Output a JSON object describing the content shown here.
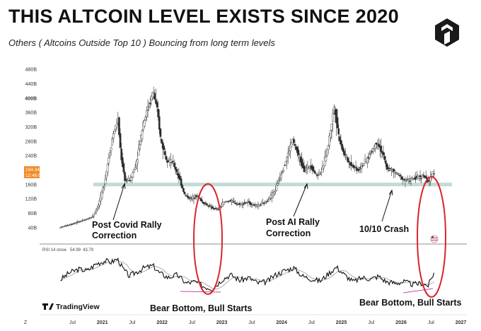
{
  "title": "THIS ALTCOIN LEVEL EXISTS SINCE 2020",
  "subtitle": "Others ( Altcoins Outside Top 10 ) Bouncing from long term levels",
  "colors": {
    "candle_up": "#ffffff",
    "candle_down": "#2b2b2b",
    "support_band": "#b9d3cc",
    "ellipse": "#d8262c",
    "price_tag": "#f28c28",
    "rsi_line": "#111111",
    "rsi_ma": "#9a9a9a"
  },
  "logo": {
    "icon": "cube-logo-icon"
  },
  "annotations": {
    "post_covid": [
      "Post Covid Rally",
      "Correction"
    ],
    "post_ai": [
      "Post AI Rally",
      "Correction"
    ],
    "crash": "10/10 Crash",
    "bear_bottom_1": "Bear Bottom, Bull Starts",
    "bear_bottom_2": "Bear Bottom, Bull Starts"
  },
  "price_tag": {
    "value": "194.34B",
    "time": "12:46:06"
  },
  "rsi": {
    "label": "RSI 14 close",
    "value1": "54.99",
    "value2": "43.79"
  },
  "tradingview": "TradingView",
  "chart_data": [
    {
      "type": "line",
      "name": "price",
      "ytick_labels": [
        "480B",
        "440B",
        "400B",
        "360B",
        "320B",
        "280B",
        "240B",
        "200B",
        "160B",
        "120B",
        "80B",
        "40B"
      ],
      "xtick_labels": [
        "Z",
        "Jul",
        "2021",
        "Jul",
        "2022",
        "Jul",
        "2023",
        "Jul",
        "2024",
        "Jul",
        "2025",
        "Jul",
        "2026",
        "Jul",
        "2027"
      ],
      "ylim": [
        20,
        500
      ],
      "support_band": [
        155,
        165
      ],
      "points": [
        [
          2020.3,
          40
        ],
        [
          2020.5,
          50
        ],
        [
          2020.7,
          60
        ],
        [
          2020.85,
          70
        ],
        [
          2020.95,
          100
        ],
        [
          2021.05,
          160
        ],
        [
          2021.12,
          230
        ],
        [
          2021.2,
          300
        ],
        [
          2021.28,
          340
        ],
        [
          2021.33,
          240
        ],
        [
          2021.4,
          170
        ],
        [
          2021.5,
          175
        ],
        [
          2021.6,
          230
        ],
        [
          2021.7,
          330
        ],
        [
          2021.8,
          380
        ],
        [
          2021.87,
          420
        ],
        [
          2021.95,
          350
        ],
        [
          2022.0,
          280
        ],
        [
          2022.1,
          230
        ],
        [
          2022.2,
          220
        ],
        [
          2022.3,
          180
        ],
        [
          2022.4,
          130
        ],
        [
          2022.5,
          120
        ],
        [
          2022.6,
          130
        ],
        [
          2022.7,
          110
        ],
        [
          2022.85,
          95
        ],
        [
          2022.95,
          90
        ],
        [
          2023.05,
          110
        ],
        [
          2023.15,
          115
        ],
        [
          2023.3,
          105
        ],
        [
          2023.45,
          110
        ],
        [
          2023.6,
          100
        ],
        [
          2023.75,
          110
        ],
        [
          2023.9,
          140
        ],
        [
          2024.0,
          185
        ],
        [
          2024.1,
          230
        ],
        [
          2024.2,
          285
        ],
        [
          2024.3,
          240
        ],
        [
          2024.4,
          200
        ],
        [
          2024.5,
          215
        ],
        [
          2024.6,
          185
        ],
        [
          2024.7,
          200
        ],
        [
          2024.8,
          270
        ],
        [
          2024.9,
          380
        ],
        [
          2024.97,
          300
        ],
        [
          2025.05,
          250
        ],
        [
          2025.15,
          220
        ],
        [
          2025.3,
          200
        ],
        [
          2025.45,
          230
        ],
        [
          2025.55,
          260
        ],
        [
          2025.62,
          280
        ],
        [
          2025.7,
          250
        ],
        [
          2025.78,
          205
        ],
        [
          2025.85,
          200
        ],
        [
          2025.95,
          190
        ],
        [
          2026.05,
          175
        ],
        [
          2026.15,
          172
        ],
        [
          2026.3,
          180
        ],
        [
          2026.4,
          185
        ],
        [
          2026.45,
          170
        ],
        [
          2026.5,
          170
        ],
        [
          2026.55,
          194
        ]
      ]
    },
    {
      "type": "line",
      "name": "RSI",
      "ylim": [
        20,
        85
      ],
      "points": [
        [
          2020.3,
          45
        ],
        [
          2020.45,
          55
        ],
        [
          2020.6,
          60
        ],
        [
          2020.75,
          58
        ],
        [
          2020.9,
          68
        ],
        [
          2021.05,
          72
        ],
        [
          2021.15,
          70
        ],
        [
          2021.25,
          75
        ],
        [
          2021.35,
          60
        ],
        [
          2021.45,
          50
        ],
        [
          2021.55,
          55
        ],
        [
          2021.7,
          62
        ],
        [
          2021.85,
          65
        ],
        [
          2021.95,
          55
        ],
        [
          2022.1,
          48
        ],
        [
          2022.25,
          52
        ],
        [
          2022.4,
          40
        ],
        [
          2022.55,
          42
        ],
        [
          2022.7,
          35
        ],
        [
          2022.85,
          32
        ],
        [
          2023.0,
          45
        ],
        [
          2023.15,
          52
        ],
        [
          2023.3,
          44
        ],
        [
          2023.45,
          48
        ],
        [
          2023.6,
          40
        ],
        [
          2023.75,
          42
        ],
        [
          2023.9,
          52
        ],
        [
          2024.05,
          58
        ],
        [
          2024.2,
          62
        ],
        [
          2024.35,
          50
        ],
        [
          2024.5,
          46
        ],
        [
          2024.65,
          43
        ],
        [
          2024.8,
          55
        ],
        [
          2024.92,
          63
        ],
        [
          2025.05,
          52
        ],
        [
          2025.2,
          42
        ],
        [
          2025.35,
          48
        ],
        [
          2025.5,
          46
        ],
        [
          2025.62,
          50
        ],
        [
          2025.75,
          42
        ],
        [
          2025.9,
          40
        ],
        [
          2026.05,
          42
        ],
        [
          2026.2,
          38
        ],
        [
          2026.35,
          40
        ],
        [
          2026.45,
          36
        ],
        [
          2026.55,
          55
        ]
      ]
    }
  ]
}
